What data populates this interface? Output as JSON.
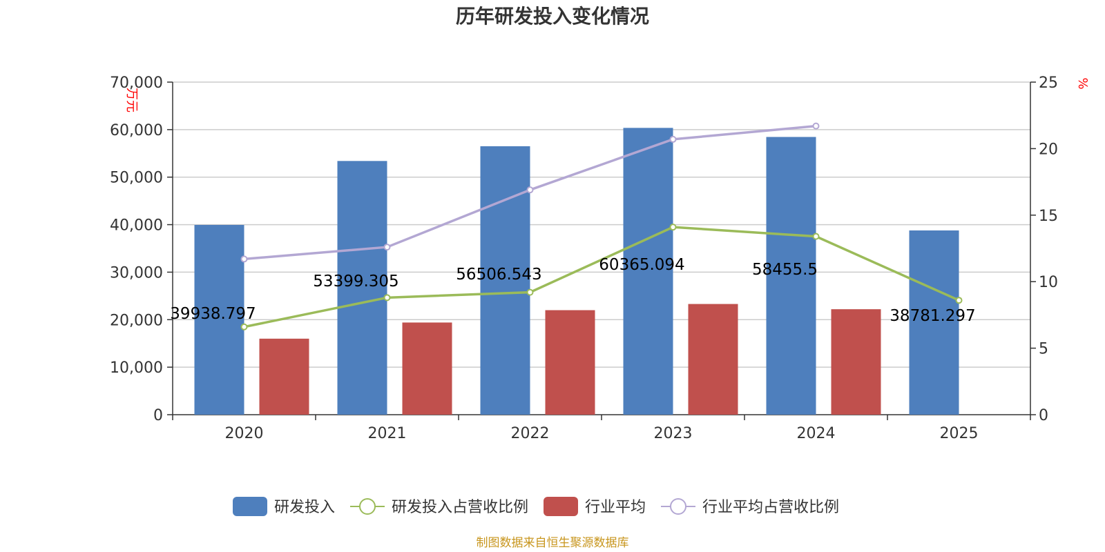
{
  "chart_data": {
    "type": "bar",
    "title": "历年研发投入变化情况",
    "categories": [
      "2020",
      "2021",
      "2022",
      "2023",
      "2024",
      "2025"
    ],
    "y_left": {
      "unit": "万元",
      "ylim": [
        0,
        70000
      ],
      "ticks": [
        "0",
        "10,000",
        "20,000",
        "30,000",
        "40,000",
        "50,000",
        "60,000",
        "70,000"
      ]
    },
    "y_right": {
      "unit": "%",
      "ylim": [
        0,
        25
      ],
      "ticks": [
        "0",
        "5",
        "10",
        "15",
        "20",
        "25"
      ]
    },
    "series": [
      {
        "name": "研发投入",
        "kind": "bar",
        "axis": "left",
        "color": "#4e7fbd",
        "values": [
          39938.797,
          53399.305,
          56506.543,
          60365.094,
          58455.5,
          38781.297
        ],
        "labels": [
          "39938.797",
          "53399.305",
          "56506.543",
          "60365.094",
          "58455.5",
          "38781.297"
        ]
      },
      {
        "name": "研发投入占营收比例",
        "kind": "line",
        "axis": "right",
        "color": "#9bbb59",
        "values": [
          6.6,
          8.8,
          9.2,
          14.1,
          13.4,
          8.6
        ]
      },
      {
        "name": "行业平均",
        "kind": "bar",
        "axis": "left",
        "color": "#c0504d",
        "values": [
          16000,
          19400,
          22000,
          23300,
          22200,
          null
        ]
      },
      {
        "name": "行业平均占营收比例",
        "kind": "line",
        "axis": "right",
        "color": "#b3a7d3",
        "values": [
          11.7,
          12.6,
          16.9,
          20.7,
          21.7,
          null
        ]
      }
    ],
    "grid": true,
    "legend": "bottom",
    "source": "制图数据来自恒生聚源数据库"
  }
}
